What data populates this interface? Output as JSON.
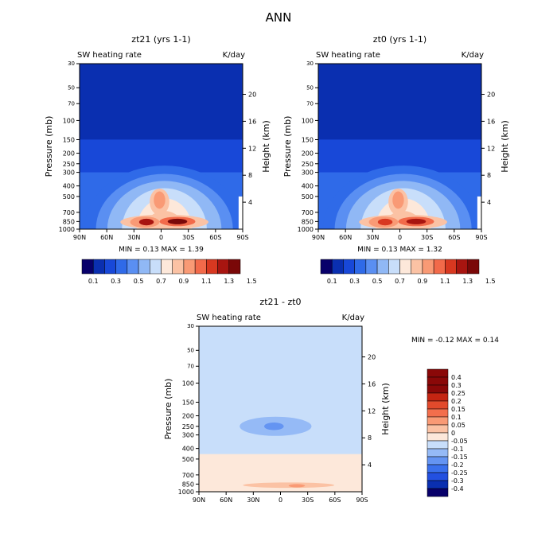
{
  "figure": {
    "title": "ANN"
  },
  "colors": {
    "abs_fill": [
      "#08006a",
      "#0a2fb0",
      "#1848d8",
      "#2f6ae8",
      "#5a8ff2",
      "#90b8f5",
      "#c8defa",
      "#fde8da",
      "#fbc2a4",
      "#f99a75",
      "#f26a4a",
      "#d83820",
      "#a81510",
      "#7a0808"
    ],
    "diff_fill": [
      "#08006a",
      "#0a2fb0",
      "#2350e0",
      "#3a70ec",
      "#6494f2",
      "#95baf6",
      "#c8defa",
      "#fde8da",
      "#fbc2a4",
      "#f99a75",
      "#f36e4c",
      "#e24a2c",
      "#c42512",
      "#8a0808"
    ]
  },
  "chart_data": [
    {
      "type": "heatmap",
      "panel": "top-left",
      "title": "zt21 (yrs 1-1)",
      "left_label": "SW heating rate",
      "right_label": "K/day",
      "xlabel": "",
      "ylabel": "Pressure (mb)",
      "y2label": "Height (km)",
      "x_ticks": [
        "90N",
        "60N",
        "30N",
        "0",
        "30S",
        "60S",
        "90S"
      ],
      "y_ticks": [
        "30",
        "50",
        "70",
        "100",
        "150",
        "200",
        "250",
        "300",
        "400",
        "500",
        "700",
        "850",
        "1000"
      ],
      "y2_ticks": [
        "20",
        "16",
        "12",
        "8",
        "4"
      ],
      "min_max": "MIN =    0.13   MAX =    1.39",
      "colorbar": {
        "levels": [
          0.1,
          0.2,
          0.3,
          0.4,
          0.5,
          0.6,
          0.7,
          0.8,
          0.9,
          1.0,
          1.1,
          1.2,
          1.3,
          1.4,
          1.5
        ],
        "labels": [
          "0.1",
          "0.3",
          "0.5",
          "0.7",
          "0.9",
          "1.1",
          "1.3",
          "1.5"
        ],
        "placement": "bottom"
      },
      "fields": {
        "strat_band": 1,
        "mid_layer": 4,
        "trop_plume": 6,
        "upper_core": 9,
        "lobe_left": 12,
        "lobe_right": 13
      }
    },
    {
      "type": "heatmap",
      "panel": "top-right",
      "title": "zt0 (yrs 1-1)",
      "left_label": "SW heating rate",
      "right_label": "K/day",
      "xlabel": "",
      "ylabel": "Pressure (mb)",
      "y2label": "Height (km)",
      "x_ticks": [
        "90N",
        "60N",
        "30N",
        "0",
        "30S",
        "60S",
        "90S"
      ],
      "y_ticks": [
        "30",
        "50",
        "70",
        "100",
        "150",
        "200",
        "250",
        "300",
        "400",
        "500",
        "700",
        "850",
        "1000"
      ],
      "y2_ticks": [
        "20",
        "16",
        "12",
        "8",
        "4"
      ],
      "min_max": "MIN =    0.13   MAX =    1.32",
      "colorbar": {
        "levels": [
          0.1,
          0.2,
          0.3,
          0.4,
          0.5,
          0.6,
          0.7,
          0.8,
          0.9,
          1.0,
          1.1,
          1.2,
          1.3,
          1.4,
          1.5
        ],
        "labels": [
          "0.1",
          "0.3",
          "0.5",
          "0.7",
          "0.9",
          "1.1",
          "1.3",
          "1.5"
        ],
        "placement": "bottom"
      },
      "fields": {
        "strat_band": 1,
        "mid_layer": 4,
        "trop_plume": 6,
        "upper_core": 9,
        "lobe_left": 11,
        "lobe_right": 12
      }
    },
    {
      "type": "heatmap",
      "panel": "bottom-center",
      "title": "zt21 - zt0",
      "left_label": "SW heating rate",
      "right_label": "K/day",
      "xlabel": "",
      "ylabel": "Pressure (mb)",
      "y2label": "Height (km)",
      "x_ticks": [
        "90N",
        "60N",
        "30N",
        "0",
        "30S",
        "60S",
        "90S"
      ],
      "y_ticks": [
        "30",
        "50",
        "70",
        "100",
        "150",
        "200",
        "250",
        "300",
        "400",
        "500",
        "700",
        "850",
        "1000"
      ],
      "y2_ticks": [
        "20",
        "16",
        "12",
        "8",
        "4"
      ],
      "min_max": "MIN =   -0.12   MAX =    0.14",
      "colorbar": {
        "levels": [
          0.4,
          0.3,
          0.25,
          0.2,
          0.15,
          0.1,
          0.05,
          0,
          -0.05,
          -0.1,
          -0.15,
          -0.2,
          -0.25,
          -0.3,
          -0.4
        ],
        "labels": [
          "0.4",
          "0.3",
          "0.25",
          "0.2",
          "0.15",
          "0.1",
          "0.05",
          "0",
          "-0.05",
          "-0.1",
          "-0.15",
          "-0.2",
          "-0.25",
          "-0.3",
          "-0.4"
        ],
        "placement": "right"
      }
    }
  ]
}
